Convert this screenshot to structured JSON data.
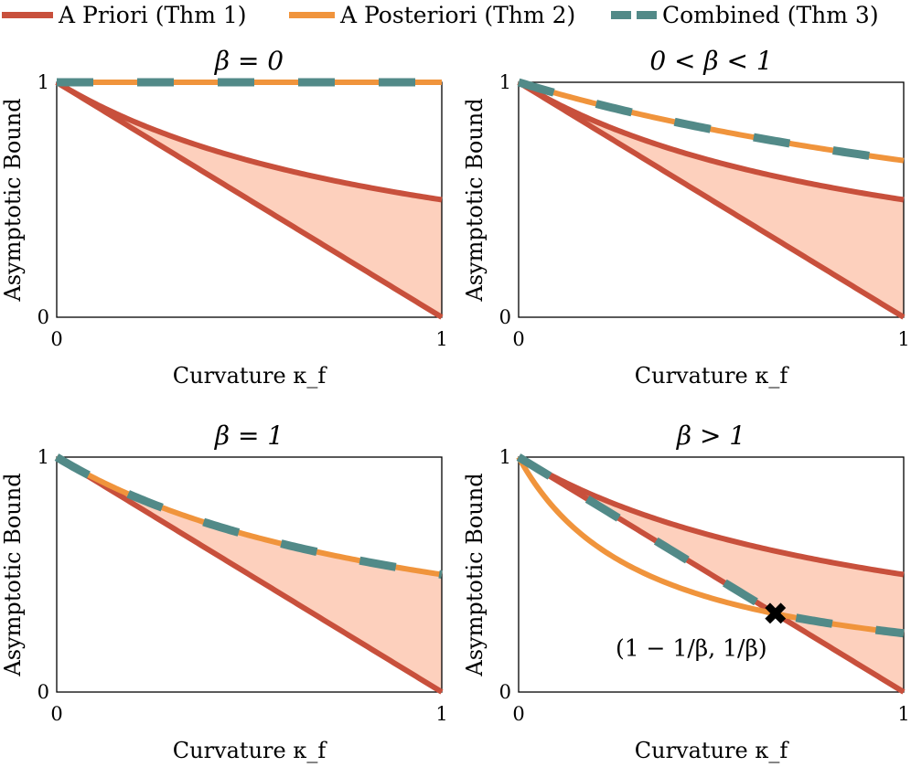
{
  "legend": [
    {
      "label": "A Priori (Thm 1)",
      "color": "#c8503c",
      "style": "solid"
    },
    {
      "label": "A Posteriori (Thm 2)",
      "color": "#f0943c",
      "style": "solid"
    },
    {
      "label": "Combined (Thm 3)",
      "color": "#528a88",
      "style": "dashed"
    }
  ],
  "colors": {
    "apriori": "#c8503c",
    "aposteriori": "#f0943c",
    "combined": "#528a88",
    "shade": "#fdd0bd"
  },
  "chart_data": [
    {
      "type": "line",
      "title": "β = 0",
      "beta": 0,
      "xlabel": "Curvature κ_f",
      "ylabel": "Asymptotic Bound",
      "xlim": [
        0,
        1
      ],
      "ylim": [
        0,
        1
      ],
      "xticks": [
        "0",
        "1"
      ],
      "yticks": [
        "0",
        "1"
      ],
      "series": [
        {
          "name": "A Priori (Thm 1) lower",
          "formula": "1 - k",
          "x": [
            0,
            0.5,
            1
          ],
          "y": [
            1,
            0.5,
            0
          ]
        },
        {
          "name": "A Priori (Thm 1) upper",
          "formula": "1/(1+k)",
          "x": [
            0,
            0.5,
            1
          ],
          "y": [
            1,
            0.667,
            0.5
          ]
        },
        {
          "name": "A Posteriori (Thm 2)",
          "formula": "1",
          "x": [
            0,
            0.5,
            1
          ],
          "y": [
            1,
            1,
            1
          ]
        },
        {
          "name": "Combined (Thm 3)",
          "formula": "1",
          "x": [
            0,
            0.5,
            1
          ],
          "y": [
            1,
            1,
            1
          ]
        }
      ]
    },
    {
      "type": "line",
      "title": "0 < β < 1",
      "beta": 0.5,
      "xlabel": "Curvature κ_f",
      "ylabel": "Asymptotic Bound",
      "xlim": [
        0,
        1
      ],
      "ylim": [
        0,
        1
      ],
      "xticks": [
        "0",
        "1"
      ],
      "yticks": [
        "0",
        "1"
      ],
      "series": [
        {
          "name": "A Priori (Thm 1) lower",
          "formula": "1 - k",
          "x": [
            0,
            0.5,
            1
          ],
          "y": [
            1,
            0.5,
            0
          ]
        },
        {
          "name": "A Priori (Thm 1) upper",
          "formula": "1/(1+k)",
          "x": [
            0,
            0.5,
            1
          ],
          "y": [
            1,
            0.667,
            0.5
          ]
        },
        {
          "name": "A Posteriori (Thm 2)",
          "formula": "1/(1+βk)",
          "x": [
            0,
            0.5,
            1
          ],
          "y": [
            1,
            0.8,
            0.667
          ]
        },
        {
          "name": "Combined (Thm 3)",
          "formula": "1/(1+βk)",
          "x": [
            0,
            0.5,
            1
          ],
          "y": [
            1,
            0.8,
            0.667
          ]
        }
      ]
    },
    {
      "type": "line",
      "title": "β = 1",
      "beta": 1,
      "xlabel": "Curvature κ_f",
      "ylabel": "Asymptotic Bound",
      "xlim": [
        0,
        1
      ],
      "ylim": [
        0,
        1
      ],
      "xticks": [
        "0",
        "1"
      ],
      "yticks": [
        "0",
        "1"
      ],
      "series": [
        {
          "name": "A Priori (Thm 1) lower",
          "formula": "1 - k",
          "x": [
            0,
            0.5,
            1
          ],
          "y": [
            1,
            0.5,
            0
          ]
        },
        {
          "name": "A Priori (Thm 1) upper",
          "formula": "1/(1+k)",
          "x": [
            0,
            0.5,
            1
          ],
          "y": [
            1,
            0.667,
            0.5
          ]
        },
        {
          "name": "A Posteriori (Thm 2)",
          "formula": "1/(1+k)",
          "x": [
            0,
            0.5,
            1
          ],
          "y": [
            1,
            0.667,
            0.5
          ]
        },
        {
          "name": "Combined (Thm 3)",
          "formula": "1/(1+k)",
          "x": [
            0,
            0.5,
            1
          ],
          "y": [
            1,
            0.667,
            0.5
          ]
        }
      ]
    },
    {
      "type": "line",
      "title": "β > 1",
      "beta": 3,
      "xlabel": "Curvature κ_f",
      "ylabel": "Asymptotic Bound",
      "xlim": [
        0,
        1
      ],
      "ylim": [
        0,
        1
      ],
      "xticks": [
        "0",
        "1"
      ],
      "yticks": [
        "0",
        "1"
      ],
      "series": [
        {
          "name": "A Priori (Thm 1) lower",
          "formula": "1 - k",
          "x": [
            0,
            0.5,
            1
          ],
          "y": [
            1,
            0.5,
            0
          ]
        },
        {
          "name": "A Priori (Thm 1) upper",
          "formula": "1/(1+k)",
          "x": [
            0,
            0.5,
            1
          ],
          "y": [
            1,
            0.667,
            0.5
          ]
        },
        {
          "name": "A Posteriori (Thm 2)",
          "formula": "1/(1+βk)",
          "x": [
            0,
            0.5,
            1
          ],
          "y": [
            1,
            0.4,
            0.25
          ]
        },
        {
          "name": "Combined (Thm 3)",
          "formula": "max(1-k, 1/(1+βk))",
          "x": [
            0,
            0.5,
            0.667,
            1
          ],
          "y": [
            1,
            0.5,
            0.333,
            0.25
          ]
        }
      ],
      "annotation": {
        "text": "(1 − 1/β, 1/β)",
        "x": 0.667,
        "y": 0.333,
        "marker": "✖"
      }
    }
  ]
}
